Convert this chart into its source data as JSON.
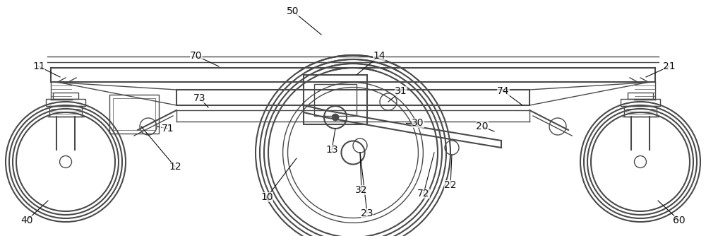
{
  "bg_color": "#ffffff",
  "line_color": "#4a4a4a",
  "label_color": "#111111",
  "fig_width": 10.0,
  "fig_height": 3.34,
  "dpi": 100
}
